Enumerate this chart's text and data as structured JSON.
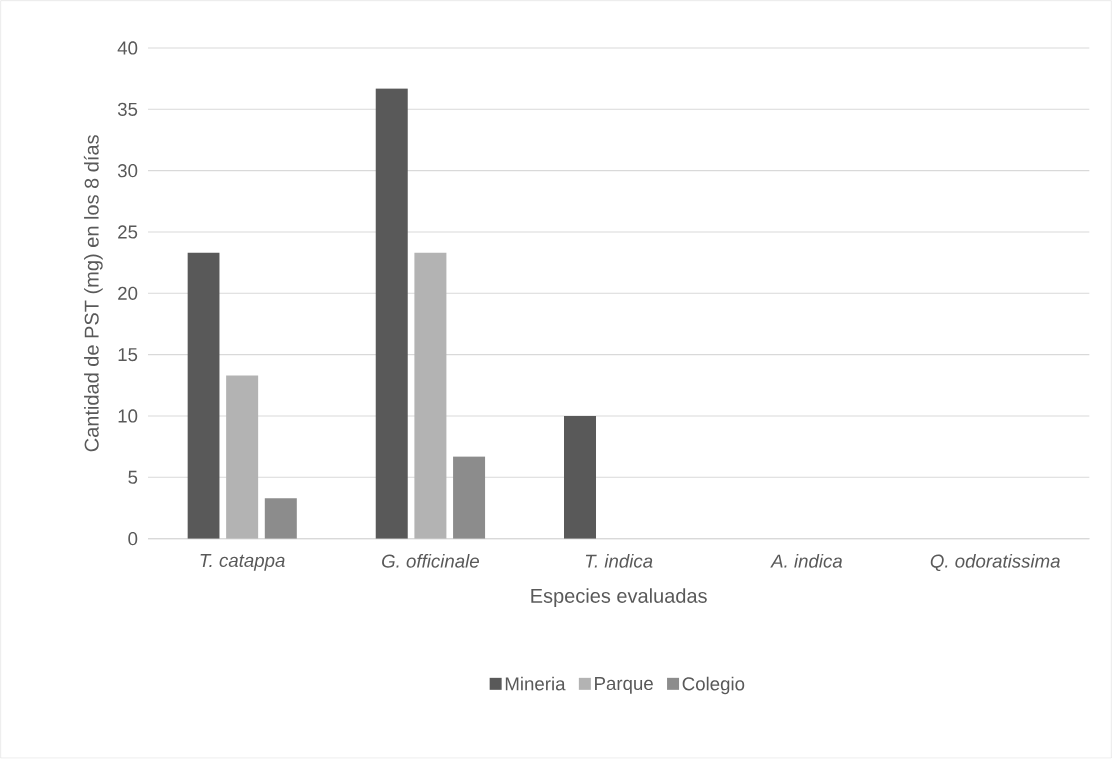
{
  "chart_data": {
    "type": "bar",
    "xlabel": "Especies evaluadas",
    "ylabel": "Cantidad de PST (mg) en los 8 días",
    "categories": [
      "T. catappa",
      "G. officinale",
      "T. indica",
      "A. indica",
      "Q. odoratissima"
    ],
    "series": [
      {
        "name": "Mineria",
        "color": "#595959",
        "values": [
          23.3,
          36.7,
          10,
          0,
          0
        ]
      },
      {
        "name": "Parque",
        "color": "#b3b3b3",
        "values": [
          13.3,
          23.3,
          0,
          0,
          0
        ]
      },
      {
        "name": "Colegio",
        "color": "#8c8c8c",
        "values": [
          3.3,
          6.7,
          0,
          0,
          0
        ]
      }
    ],
    "ylim": [
      0,
      40
    ],
    "yticks": [
      0,
      5,
      10,
      15,
      20,
      25,
      30,
      35,
      40
    ],
    "grid": "y",
    "legend": "bottom"
  }
}
